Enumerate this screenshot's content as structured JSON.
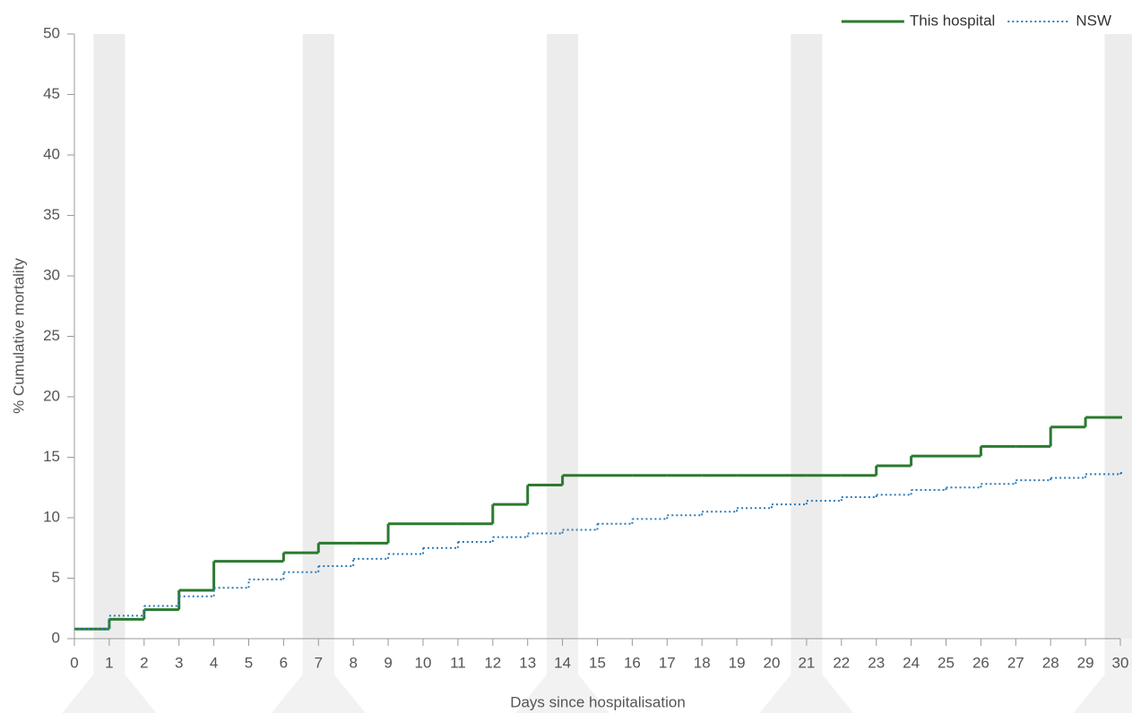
{
  "chart_data": {
    "type": "step",
    "y_label": "% Cumulative mortality",
    "x_label": "Days since hospitalisation",
    "x": [
      0,
      1,
      2,
      3,
      4,
      5,
      6,
      7,
      8,
      9,
      10,
      11,
      12,
      13,
      14,
      15,
      16,
      17,
      18,
      19,
      20,
      21,
      22,
      23,
      24,
      25,
      26,
      27,
      28,
      29,
      30
    ],
    "series": [
      {
        "name": "This hospital",
        "color": "#2b7a2f",
        "style": "solid",
        "values": [
          0.8,
          1.6,
          2.4,
          4.0,
          6.4,
          6.4,
          7.1,
          7.9,
          7.9,
          9.5,
          9.5,
          9.5,
          11.1,
          12.7,
          13.5,
          13.5,
          13.5,
          13.5,
          13.5,
          13.5,
          13.5,
          13.5,
          13.5,
          14.3,
          15.1,
          15.1,
          15.9,
          15.9,
          17.5,
          18.3,
          18.3
        ]
      },
      {
        "name": "NSW",
        "color": "#2a7ab8",
        "style": "dotted",
        "values": [
          0.8,
          1.9,
          2.7,
          3.5,
          4.2,
          4.9,
          5.5,
          6.0,
          6.6,
          7.0,
          7.5,
          8.0,
          8.4,
          8.7,
          9.0,
          9.5,
          9.9,
          10.2,
          10.5,
          10.8,
          11.1,
          11.4,
          11.7,
          11.9,
          12.3,
          12.5,
          12.8,
          13.1,
          13.3,
          13.6,
          13.7
        ]
      }
    ],
    "highlight_x": [
      1,
      7,
      14,
      21,
      30
    ],
    "xlim": [
      0,
      30
    ],
    "xticks": [
      0,
      1,
      2,
      3,
      4,
      5,
      6,
      7,
      8,
      9,
      10,
      11,
      12,
      13,
      14,
      15,
      16,
      17,
      18,
      19,
      20,
      21,
      22,
      23,
      24,
      25,
      26,
      27,
      28,
      29,
      30
    ],
    "ylim": [
      0,
      50
    ],
    "yticks": [
      0,
      5,
      10,
      15,
      20,
      25,
      30,
      35,
      40,
      45,
      50
    ],
    "legend": "top-right"
  }
}
